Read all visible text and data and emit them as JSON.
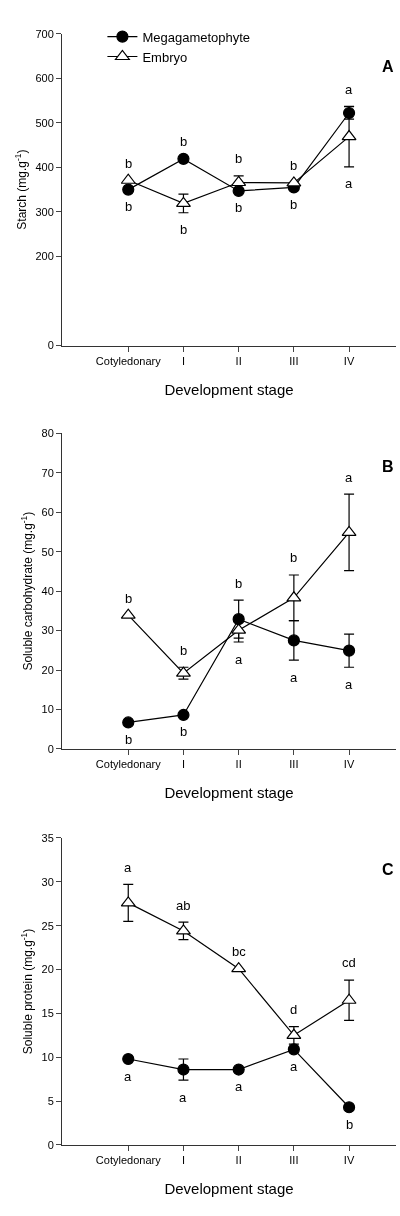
{
  "chart_data": [
    {
      "type": "line",
      "ylabel": "Starch (mg.g$^{-1}$)",
      "xlabel": "Development stage",
      "categories": [
        "Cotyledonary",
        "I",
        "II",
        "III",
        "IV"
      ],
      "ylim": [
        0,
        700
      ],
      "yticks": [
        0,
        200,
        300,
        400,
        500,
        600,
        700
      ],
      "legend": "top",
      "series": [
        {
          "name": "Megagametophyte",
          "color": "#000000",
          "marker": "circle",
          "values": [
            350,
            419,
            347,
            355,
            522
          ],
          "errors": [
            null,
            null,
            null,
            null,
            14
          ]
        },
        {
          "name": "Embryo",
          "color": "#000000",
          "marker": "triangle",
          "values": [
            371,
            319,
            366,
            365,
            469
          ],
          "errors": [
            null,
            21,
            15,
            null,
            68
          ]
        }
      ],
      "annotations": [
        "A",
        {
          "text": "b",
          "x": "Cotyledonary",
          "y": 371
        },
        {
          "text": "b",
          "x": "Cotyledonary",
          "y": 350
        },
        {
          "text": "b",
          "x": "I",
          "y": 419
        },
        {
          "text": "b",
          "x": "I",
          "y": 319
        },
        {
          "text": "b",
          "x": "II",
          "y": 366
        },
        {
          "text": "b",
          "x": "II",
          "y": 347
        },
        {
          "text": "b",
          "x": "III",
          "y": 365
        },
        {
          "text": "b",
          "x": "III",
          "y": 355
        },
        {
          "text": "a",
          "x": "IV",
          "y": 522
        },
        {
          "text": "a",
          "x": "IV",
          "y": 401
        }
      ]
    },
    {
      "type": "line",
      "ylabel": "Soluble carbohydrate (mg.g$^{-1}$)",
      "xlabel": "Development stage",
      "categories": [
        "Cotyledonary",
        "I",
        "II",
        "III",
        "IV"
      ],
      "ylim": [
        0,
        80
      ],
      "yticks": [
        0,
        10,
        20,
        30,
        40,
        50,
        60,
        70,
        80
      ],
      "legend": false,
      "series": [
        {
          "color": "#000000",
          "marker": "circle",
          "values": [
            6.7,
            8.6,
            32.9,
            27.5,
            24.9
          ],
          "errors": [
            null,
            null,
            4.8,
            5,
            4.2
          ]
        },
        {
          "color": "#000000",
          "marker": "triangle",
          "values": [
            33.9,
            19.2,
            30.1,
            38.3,
            54.9
          ],
          "errors": [
            null,
            1.5,
            3,
            5.8,
            9.7
          ]
        }
      ],
      "annotations": [
        "B",
        {
          "text": "b",
          "x": "Cotyledonary",
          "y": 33.9
        },
        {
          "text": "b",
          "x": "Cotyledonary",
          "y": 6.7
        },
        {
          "text": "b",
          "x": "I",
          "y": 19.2
        },
        {
          "text": "b",
          "x": "I",
          "y": 8.6
        },
        {
          "text": "b",
          "x": "II",
          "y": 32.9
        },
        {
          "text": "a",
          "x": "II",
          "y": 30.1
        },
        {
          "text": "b",
          "x": "III",
          "y": 38.3
        },
        {
          "text": "a",
          "x": "III",
          "y": 27.5
        },
        {
          "text": "a",
          "x": "IV",
          "y": 64.6
        },
        {
          "text": "a",
          "x": "IV",
          "y": 24.9
        }
      ]
    },
    {
      "type": "line",
      "ylabel": "Soluble protein (mg.g$^{-1}$)",
      "xlabel": "Development stage",
      "categories": [
        "Cotyledonary",
        "I",
        "II",
        "III",
        "IV"
      ],
      "ylim": [
        0,
        35
      ],
      "yticks": [
        0,
        5,
        10,
        15,
        20,
        25,
        30,
        35
      ],
      "legend": false,
      "series": [
        {
          "color": "#000000",
          "marker": "circle",
          "values": [
            9.8,
            8.6,
            8.6,
            10.9,
            4.3
          ],
          "errors": [
            null,
            1.2,
            null,
            null,
            null
          ]
        },
        {
          "color": "#000000",
          "marker": "triangle",
          "values": [
            27.6,
            24.4,
            20.1,
            12.5,
            16.5
          ],
          "errors": [
            2.1,
            1,
            null,
            1,
            2.3
          ]
        }
      ],
      "annotations": [
        "C",
        {
          "text": "a",
          "x": "Cotyledonary",
          "y": 27.6
        },
        {
          "text": "a",
          "x": "Cotyledonary",
          "y": 9.8
        },
        {
          "text": "ab",
          "x": "I",
          "y": 24.4
        },
        {
          "text": "a",
          "x": "I",
          "y": 8.6
        },
        {
          "text": "bc",
          "x": "II",
          "y": 20.1
        },
        {
          "text": "a",
          "x": "II",
          "y": 8.6
        },
        {
          "text": "d",
          "x": "III",
          "y": 12.5
        },
        {
          "text": "a",
          "x": "III",
          "y": 10.9
        },
        {
          "text": "cd",
          "x": "IV",
          "y": 16.5
        },
        {
          "text": "b",
          "x": "IV",
          "y": 4.3
        }
      ]
    }
  ]
}
